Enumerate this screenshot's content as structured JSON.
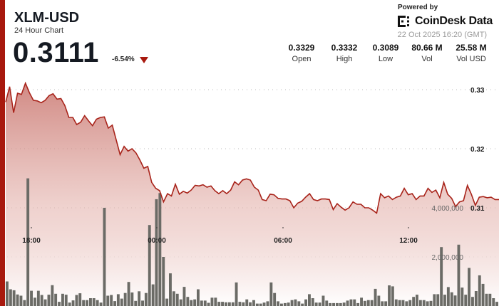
{
  "header": {
    "title": "XLM-USD",
    "subtitle": "24 Hour Chart",
    "price": "0.3111",
    "change": "-6.54%",
    "change_direction": "down"
  },
  "branding": {
    "powered_by": "Powered by",
    "name": "CoinDesk Data",
    "timestamp": "22 Oct 2025 16:20 (GMT)"
  },
  "stats": [
    {
      "value": "0.3329",
      "label": "Open"
    },
    {
      "value": "0.3332",
      "label": "High"
    },
    {
      "value": "0.3089",
      "label": "Low"
    },
    {
      "value": "80.66 M",
      "label": "Vol"
    },
    {
      "value": "25.58 M",
      "label": "Vol USD"
    }
  ],
  "colors": {
    "accent": "#a8190e",
    "line": "#a8231a",
    "volume": "#6b6b66"
  },
  "chart_data": {
    "type": "line",
    "title": "XLM-USD 24 Hour Chart",
    "price_axis": {
      "ticks": [
        "0.33",
        "0.32",
        "0.31"
      ],
      "tick_values": [
        0.33,
        0.32,
        0.31
      ],
      "ylim": [
        0.3098,
        0.332
      ]
    },
    "volume_axis": {
      "ticks": [
        "4,000,000",
        "2,000,000"
      ],
      "tick_values": [
        4000000,
        2000000
      ]
    },
    "x_ticks": [
      "18:00",
      "00:00",
      "06:00",
      "12:00"
    ],
    "grid": true,
    "price_series": [
      0.3279,
      0.3305,
      0.3261,
      0.3294,
      0.3292,
      0.3311,
      0.3295,
      0.3282,
      0.3281,
      0.3278,
      0.3282,
      0.329,
      0.3293,
      0.3284,
      0.3285,
      0.3273,
      0.3253,
      0.3253,
      0.3241,
      0.3245,
      0.3256,
      0.3247,
      0.3239,
      0.325,
      0.3253,
      0.3254,
      0.3235,
      0.324,
      0.3215,
      0.319,
      0.3204,
      0.3196,
      0.32,
      0.3193,
      0.3181,
      0.3167,
      0.317,
      0.3143,
      0.3133,
      0.3129,
      0.311,
      0.3124,
      0.312,
      0.314,
      0.3123,
      0.3128,
      0.3125,
      0.313,
      0.3138,
      0.3137,
      0.3139,
      0.3135,
      0.3137,
      0.3129,
      0.3124,
      0.3129,
      0.3124,
      0.313,
      0.3144,
      0.3139,
      0.3147,
      0.3149,
      0.3147,
      0.3135,
      0.313,
      0.3114,
      0.3112,
      0.3123,
      0.3122,
      0.3116,
      0.3115,
      0.3115,
      0.3112,
      0.31,
      0.3108,
      0.3111,
      0.3118,
      0.3124,
      0.3114,
      0.3112,
      0.3115,
      0.3115,
      0.3114,
      0.3097,
      0.3107,
      0.3101,
      0.3096,
      0.31,
      0.311,
      0.3106,
      0.3106,
      0.31,
      0.31,
      0.3096,
      0.3091,
      0.3124,
      0.3117,
      0.312,
      0.3114,
      0.3118,
      0.312,
      0.3133,
      0.3122,
      0.3124,
      0.3114,
      0.312,
      0.312,
      0.3133,
      0.3126,
      0.313,
      0.3117,
      0.3143,
      0.3123,
      0.3116,
      0.3102,
      0.311,
      0.3112,
      0.3138,
      0.3123,
      0.3104,
      0.3118,
      0.3119,
      0.3117,
      0.3118,
      0.3114,
      0.3114
    ],
    "volume_series": [
      1.0,
      0.68,
      0.64,
      0.47,
      0.42,
      0.24,
      5.2,
      0.62,
      0.34,
      0.62,
      0.45,
      0.27,
      0.46,
      0.85,
      0.5,
      0.17,
      0.5,
      0.46,
      0.14,
      0.23,
      0.45,
      0.52,
      0.24,
      0.24,
      0.32,
      0.32,
      0.24,
      0.14,
      4.0,
      0.42,
      0.45,
      0.2,
      0.48,
      0.3,
      0.53,
      0.98,
      0.55,
      0.21,
      0.6,
      0.22,
      0.53,
      3.3,
      0.88,
      4.35,
      4.6,
      2.0,
      0.3,
      1.33,
      0.6,
      0.5,
      0.27,
      0.78,
      0.37,
      0.24,
      0.27,
      0.68,
      0.22,
      0.22,
      0.13,
      0.34,
      0.34,
      0.17,
      0.17,
      0.15,
      0.15,
      0.15,
      0.96,
      0.17,
      0.15,
      0.27,
      0.15,
      0.24,
      0.1,
      0.1,
      0.14,
      0.19,
      0.96,
      0.53,
      0.19,
      0.1,
      0.12,
      0.14,
      0.24,
      0.27,
      0.19,
      0.1,
      0.27,
      0.48,
      0.32,
      0.14,
      0.14,
      0.42,
      0.22,
      0.12,
      0.12,
      0.12,
      0.12,
      0.14,
      0.22,
      0.27,
      0.27,
      0.12,
      0.34,
      0.21,
      0.24,
      0.24,
      0.7,
      0.42,
      0.19,
      0.19,
      0.84,
      0.8,
      0.27,
      0.24,
      0.24,
      0.19,
      0.24,
      0.37,
      0.46,
      0.24,
      0.24,
      0.19,
      0.21,
      0.48,
      0.48,
      2.4,
      0.46,
      0.77,
      0.56,
      0.43,
      2.5,
      0.75,
      0.46,
      1.55,
      0.37,
      0.61,
      1.25,
      0.9,
      0.5,
      0.5,
      0.32,
      0.17
    ],
    "volume_units": "millions"
  }
}
